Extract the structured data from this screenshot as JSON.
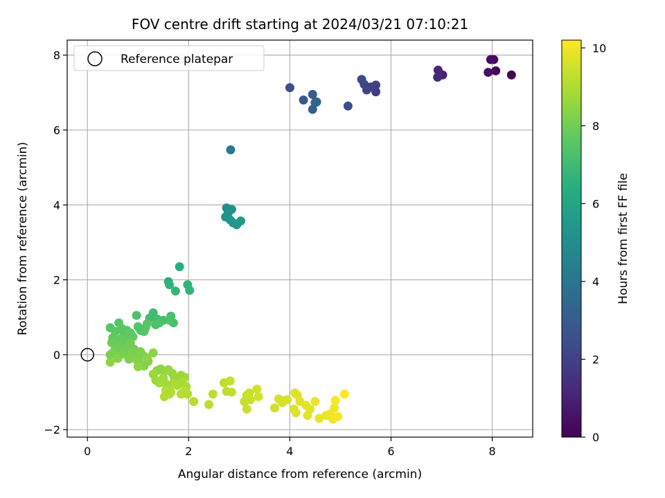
{
  "chart_data": {
    "type": "scatter",
    "title": "FOV centre drift starting at 2024/03/21 07:10:21",
    "xlabel": "Angular distance from reference (arcmin)",
    "ylabel": "Rotation from reference (arcmin)",
    "xlim": [
      -0.4,
      8.8
    ],
    "ylim": [
      -2.2,
      8.4
    ],
    "xticks": [
      0,
      2,
      4,
      6,
      8
    ],
    "yticks": [
      -2,
      0,
      2,
      4,
      6,
      8
    ],
    "grid": true,
    "legend": {
      "placement": "upper-left",
      "entries": [
        {
          "label": "Reference platepar",
          "marker": "open-circle"
        }
      ]
    },
    "reference_point": {
      "x": 0,
      "y": 0
    },
    "colorbar": {
      "label": "Hours from first FF file",
      "colormap": "viridis",
      "range": [
        0,
        10.2
      ],
      "ticks": [
        0,
        2,
        4,
        6,
        8,
        10
      ]
    },
    "colormap_stops": [
      "#440154",
      "#472c7a",
      "#3b518b",
      "#2c718e",
      "#21908d",
      "#27ad81",
      "#5cc863",
      "#aadc32",
      "#fde725"
    ],
    "points": [
      {
        "x": 8.38,
        "y": 7.47,
        "c": 0.1
      },
      {
        "x": 8.07,
        "y": 7.58,
        "c": 0.2
      },
      {
        "x": 8.03,
        "y": 7.88,
        "c": 0.3
      },
      {
        "x": 7.97,
        "y": 7.88,
        "c": 0.4
      },
      {
        "x": 7.92,
        "y": 7.54,
        "c": 0.5
      },
      {
        "x": 7.02,
        "y": 7.47,
        "c": 1.0
      },
      {
        "x": 6.93,
        "y": 7.6,
        "c": 1.1
      },
      {
        "x": 6.92,
        "y": 7.41,
        "c": 1.2
      },
      {
        "x": 5.7,
        "y": 7.02,
        "c": 1.8
      },
      {
        "x": 5.7,
        "y": 7.2,
        "c": 1.9
      },
      {
        "x": 5.6,
        "y": 7.15,
        "c": 2.0
      },
      {
        "x": 5.52,
        "y": 7.07,
        "c": 2.1
      },
      {
        "x": 5.47,
        "y": 7.22,
        "c": 2.2
      },
      {
        "x": 5.42,
        "y": 7.35,
        "c": 2.3
      },
      {
        "x": 5.15,
        "y": 6.64,
        "c": 2.5
      },
      {
        "x": 4.0,
        "y": 7.13,
        "c": 2.6
      },
      {
        "x": 4.27,
        "y": 6.8,
        "c": 2.8
      },
      {
        "x": 4.45,
        "y": 6.95,
        "c": 3.0
      },
      {
        "x": 4.45,
        "y": 6.55,
        "c": 3.1
      },
      {
        "x": 4.5,
        "y": 6.73,
        "c": 3.2
      },
      {
        "x": 4.53,
        "y": 6.75,
        "c": 3.4
      },
      {
        "x": 2.83,
        "y": 5.47,
        "c": 4.2
      },
      {
        "x": 2.75,
        "y": 3.92,
        "c": 5.0
      },
      {
        "x": 2.85,
        "y": 3.88,
        "c": 5.1
      },
      {
        "x": 2.78,
        "y": 3.78,
        "c": 5.2
      },
      {
        "x": 2.73,
        "y": 3.68,
        "c": 5.2
      },
      {
        "x": 2.82,
        "y": 3.6,
        "c": 5.3
      },
      {
        "x": 2.88,
        "y": 3.52,
        "c": 5.4
      },
      {
        "x": 2.95,
        "y": 3.47,
        "c": 5.4
      },
      {
        "x": 3.03,
        "y": 3.57,
        "c": 5.5
      },
      {
        "x": 1.82,
        "y": 2.35,
        "c": 6.4
      },
      {
        "x": 1.6,
        "y": 1.95,
        "c": 6.5
      },
      {
        "x": 1.62,
        "y": 1.87,
        "c": 6.6
      },
      {
        "x": 1.98,
        "y": 1.87,
        "c": 6.6
      },
      {
        "x": 2.02,
        "y": 1.72,
        "c": 6.7
      },
      {
        "x": 1.74,
        "y": 1.7,
        "c": 6.7
      },
      {
        "x": 1.3,
        "y": 1.12,
        "c": 7.0
      },
      {
        "x": 1.23,
        "y": 0.98,
        "c": 7.0
      },
      {
        "x": 1.38,
        "y": 0.95,
        "c": 7.1
      },
      {
        "x": 1.65,
        "y": 1.03,
        "c": 7.1
      },
      {
        "x": 1.5,
        "y": 0.92,
        "c": 7.2
      },
      {
        "x": 1.7,
        "y": 0.85,
        "c": 7.2
      },
      {
        "x": 1.62,
        "y": 0.92,
        "c": 7.3
      },
      {
        "x": 1.35,
        "y": 0.8,
        "c": 7.3
      },
      {
        "x": 1.42,
        "y": 0.85,
        "c": 7.3
      },
      {
        "x": 0.97,
        "y": 1.05,
        "c": 7.3
      },
      {
        "x": 1.0,
        "y": 0.75,
        "c": 7.4
      },
      {
        "x": 1.05,
        "y": 0.65,
        "c": 7.4
      },
      {
        "x": 1.15,
        "y": 0.72,
        "c": 7.4
      },
      {
        "x": 1.18,
        "y": 0.83,
        "c": 7.5
      },
      {
        "x": 1.12,
        "y": 0.62,
        "c": 7.5
      },
      {
        "x": 0.45,
        "y": 0.72,
        "c": 7.5
      },
      {
        "x": 0.62,
        "y": 0.85,
        "c": 7.5
      },
      {
        "x": 0.55,
        "y": 0.62,
        "c": 7.6
      },
      {
        "x": 0.68,
        "y": 0.7,
        "c": 7.6
      },
      {
        "x": 0.78,
        "y": 0.65,
        "c": 7.6
      },
      {
        "x": 0.72,
        "y": 0.55,
        "c": 7.6
      },
      {
        "x": 0.85,
        "y": 0.58,
        "c": 7.7
      },
      {
        "x": 0.9,
        "y": 0.48,
        "c": 7.7
      },
      {
        "x": 0.82,
        "y": 0.45,
        "c": 7.7
      },
      {
        "x": 0.5,
        "y": 0.45,
        "c": 7.7
      },
      {
        "x": 0.58,
        "y": 0.38,
        "c": 7.8
      },
      {
        "x": 0.65,
        "y": 0.42,
        "c": 7.8
      },
      {
        "x": 0.7,
        "y": 0.35,
        "c": 7.8
      },
      {
        "x": 0.75,
        "y": 0.28,
        "c": 7.8
      },
      {
        "x": 0.48,
        "y": 0.32,
        "c": 7.9
      },
      {
        "x": 0.6,
        "y": 0.25,
        "c": 7.9
      },
      {
        "x": 0.68,
        "y": 0.18,
        "c": 7.9
      },
      {
        "x": 0.8,
        "y": 0.22,
        "c": 7.9
      },
      {
        "x": 0.85,
        "y": 0.3,
        "c": 8.0
      },
      {
        "x": 0.92,
        "y": 0.15,
        "c": 8.0
      },
      {
        "x": 0.78,
        "y": 0.12,
        "c": 8.0
      },
      {
        "x": 0.62,
        "y": 0.08,
        "c": 8.0
      },
      {
        "x": 0.55,
        "y": 0.15,
        "c": 8.0
      },
      {
        "x": 0.7,
        "y": 0.02,
        "c": 8.1
      },
      {
        "x": 0.5,
        "y": 0.05,
        "c": 8.1
      },
      {
        "x": 0.45,
        "y": 0.0,
        "c": 8.1
      },
      {
        "x": 0.6,
        "y": -0.05,
        "c": 8.1
      },
      {
        "x": 0.88,
        "y": 0.05,
        "c": 8.2
      },
      {
        "x": 0.95,
        "y": -0.05,
        "c": 8.2
      },
      {
        "x": 1.05,
        "y": 0.08,
        "c": 8.2
      },
      {
        "x": 1.1,
        "y": -0.02,
        "c": 8.2
      },
      {
        "x": 0.82,
        "y": -0.12,
        "c": 8.2
      },
      {
        "x": 0.98,
        "y": -0.15,
        "c": 8.3
      },
      {
        "x": 1.05,
        "y": -0.25,
        "c": 8.3
      },
      {
        "x": 1.12,
        "y": -0.3,
        "c": 8.3
      },
      {
        "x": 1.2,
        "y": -0.18,
        "c": 8.3
      },
      {
        "x": 0.6,
        "y": -0.1,
        "c": 8.3
      },
      {
        "x": 0.45,
        "y": -0.2,
        "c": 8.4
      },
      {
        "x": 1.3,
        "y": 0.05,
        "c": 8.4
      },
      {
        "x": 1.18,
        "y": -0.08,
        "c": 8.4
      },
      {
        "x": 1.0,
        "y": -0.32,
        "c": 8.4
      },
      {
        "x": 1.38,
        "y": -0.42,
        "c": 8.5
      },
      {
        "x": 1.45,
        "y": -0.38,
        "c": 8.5
      },
      {
        "x": 1.52,
        "y": -0.45,
        "c": 8.5
      },
      {
        "x": 1.6,
        "y": -0.4,
        "c": 8.6
      },
      {
        "x": 1.68,
        "y": -0.5,
        "c": 8.6
      },
      {
        "x": 1.72,
        "y": -0.62,
        "c": 8.6
      },
      {
        "x": 1.85,
        "y": -0.55,
        "c": 8.7
      },
      {
        "x": 1.92,
        "y": -0.6,
        "c": 8.7
      },
      {
        "x": 1.3,
        "y": -0.52,
        "c": 8.7
      },
      {
        "x": 1.35,
        "y": -0.68,
        "c": 8.7
      },
      {
        "x": 1.42,
        "y": -0.75,
        "c": 8.8
      },
      {
        "x": 1.5,
        "y": -0.62,
        "c": 8.8
      },
      {
        "x": 1.55,
        "y": -0.78,
        "c": 8.8
      },
      {
        "x": 1.62,
        "y": -0.85,
        "c": 8.8
      },
      {
        "x": 1.7,
        "y": -0.75,
        "c": 8.9
      },
      {
        "x": 1.78,
        "y": -0.82,
        "c": 8.9
      },
      {
        "x": 1.88,
        "y": -0.72,
        "c": 8.9
      },
      {
        "x": 1.95,
        "y": -0.85,
        "c": 8.9
      },
      {
        "x": 1.55,
        "y": -0.95,
        "c": 9.0
      },
      {
        "x": 1.65,
        "y": -1.0,
        "c": 9.0
      },
      {
        "x": 1.52,
        "y": -1.12,
        "c": 9.0
      },
      {
        "x": 1.62,
        "y": -1.05,
        "c": 9.0
      },
      {
        "x": 1.85,
        "y": -1.05,
        "c": 9.1
      },
      {
        "x": 1.92,
        "y": -0.98,
        "c": 9.1
      },
      {
        "x": 1.98,
        "y": -1.05,
        "c": 9.1
      },
      {
        "x": 2.1,
        "y": -1.25,
        "c": 9.1
      },
      {
        "x": 2.4,
        "y": -1.33,
        "c": 9.2
      },
      {
        "x": 2.48,
        "y": -1.05,
        "c": 9.2
      },
      {
        "x": 2.7,
        "y": -0.75,
        "c": 9.2
      },
      {
        "x": 2.75,
        "y": -0.98,
        "c": 9.2
      },
      {
        "x": 2.82,
        "y": -0.7,
        "c": 9.3
      },
      {
        "x": 2.85,
        "y": -1.0,
        "c": 9.3
      },
      {
        "x": 3.1,
        "y": -1.25,
        "c": 9.3
      },
      {
        "x": 3.15,
        "y": -1.08,
        "c": 9.4
      },
      {
        "x": 3.2,
        "y": -1.02,
        "c": 9.4
      },
      {
        "x": 3.22,
        "y": -1.2,
        "c": 9.4
      },
      {
        "x": 3.15,
        "y": -1.45,
        "c": 9.4
      },
      {
        "x": 3.35,
        "y": -0.92,
        "c": 9.5
      },
      {
        "x": 3.38,
        "y": -1.12,
        "c": 9.5
      },
      {
        "x": 3.7,
        "y": -1.42,
        "c": 9.5
      },
      {
        "x": 3.78,
        "y": -1.18,
        "c": 9.6
      },
      {
        "x": 3.85,
        "y": -1.28,
        "c": 9.6
      },
      {
        "x": 3.9,
        "y": -1.22,
        "c": 9.6
      },
      {
        "x": 3.95,
        "y": -1.2,
        "c": 9.6
      },
      {
        "x": 4.08,
        "y": -1.45,
        "c": 9.7
      },
      {
        "x": 4.1,
        "y": -1.02,
        "c": 9.7
      },
      {
        "x": 4.12,
        "y": -1.55,
        "c": 9.7
      },
      {
        "x": 4.15,
        "y": -1.08,
        "c": 9.7
      },
      {
        "x": 4.2,
        "y": -1.25,
        "c": 9.8
      },
      {
        "x": 4.32,
        "y": -1.35,
        "c": 9.8
      },
      {
        "x": 4.35,
        "y": -1.62,
        "c": 9.8
      },
      {
        "x": 4.4,
        "y": -1.45,
        "c": 9.8
      },
      {
        "x": 4.5,
        "y": -1.25,
        "c": 9.9
      },
      {
        "x": 4.58,
        "y": -1.7,
        "c": 9.9
      },
      {
        "x": 4.72,
        "y": -1.62,
        "c": 9.9
      },
      {
        "x": 4.8,
        "y": -1.58,
        "c": 10.0
      },
      {
        "x": 4.85,
        "y": -1.72,
        "c": 10.0
      },
      {
        "x": 4.88,
        "y": -1.42,
        "c": 10.0
      },
      {
        "x": 4.9,
        "y": -1.22,
        "c": 10.1
      },
      {
        "x": 4.95,
        "y": -1.65,
        "c": 10.1
      },
      {
        "x": 5.08,
        "y": -1.05,
        "c": 10.2
      }
    ]
  }
}
